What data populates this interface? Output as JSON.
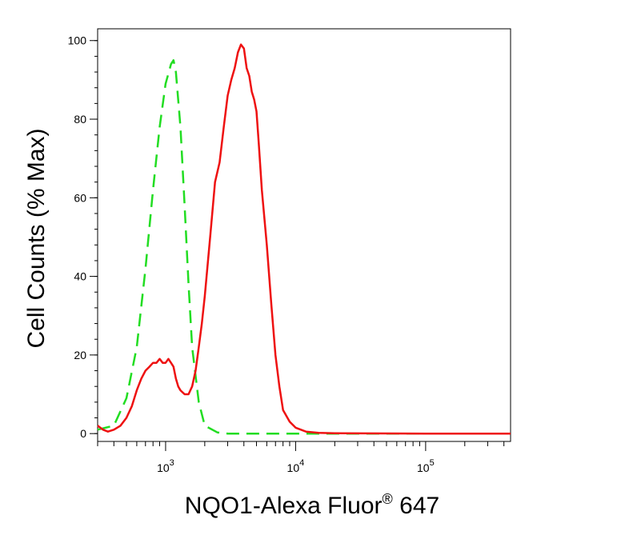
{
  "chart_data": {
    "type": "line",
    "xlabel": "NQO1-Alexa Fluor",
    "xlabel_mark": "®",
    "xlabel_suffix": " 647",
    "ylabel": "Cell Counts (% Max)",
    "x_scale": "log",
    "xlim": [
      300,
      450000
    ],
    "ylim": [
      -2,
      103
    ],
    "y_ticks": [
      0,
      20,
      40,
      60,
      80,
      100
    ],
    "y_tick_labels": [
      "0",
      "20",
      "40",
      "60",
      "80",
      "100"
    ],
    "x_ticks": [
      1000,
      10000,
      100000
    ],
    "x_tick_labels": [
      {
        "base": "10",
        "exp": "3"
      },
      {
        "base": "10",
        "exp": "4"
      },
      {
        "base": "10",
        "exp": "5"
      }
    ],
    "grid": false,
    "series": [
      {
        "color": "#22dd22",
        "dash": "dashed",
        "x": [
          300,
          400,
          500,
          600,
          700,
          800,
          900,
          1000,
          1100,
          1150,
          1200,
          1300,
          1400,
          1500,
          1600,
          1800,
          2000,
          2500,
          3000,
          5000,
          10000,
          100000,
          450000
        ],
        "y": [
          1,
          2,
          9,
          22,
          42,
          62,
          78,
          89,
          94,
          95,
          92,
          78,
          58,
          38,
          22,
          8,
          2,
          0.3,
          0,
          0,
          0,
          0,
          0
        ]
      },
      {
        "color": "#ee1111",
        "dash": "solid",
        "x": [
          300,
          330,
          360,
          400,
          450,
          500,
          550,
          600,
          650,
          700,
          750,
          800,
          850,
          900,
          950,
          1000,
          1050,
          1100,
          1150,
          1200,
          1250,
          1300,
          1400,
          1500,
          1600,
          1700,
          1800,
          1900,
          2000,
          2200,
          2400,
          2600,
          2800,
          3000,
          3200,
          3400,
          3600,
          3800,
          4000,
          4200,
          4400,
          4600,
          4800,
          5000,
          5200,
          5500,
          6000,
          6500,
          7000,
          7500,
          8000,
          9000,
          10000,
          12000,
          15000,
          20000,
          100000,
          450000
        ],
        "y": [
          2,
          1,
          0.5,
          1,
          2,
          4,
          7,
          11,
          14,
          16,
          17,
          18,
          18,
          19,
          18,
          18,
          19,
          18,
          17,
          14,
          12,
          11,
          10,
          10,
          12,
          16,
          22,
          28,
          35,
          50,
          64,
          69,
          78,
          86,
          90,
          93,
          97,
          99,
          98,
          93,
          91,
          87,
          85,
          82,
          74,
          62,
          48,
          33,
          20,
          12,
          6,
          3,
          1.5,
          0.5,
          0.2,
          0.1,
          0,
          0
        ]
      }
    ]
  }
}
